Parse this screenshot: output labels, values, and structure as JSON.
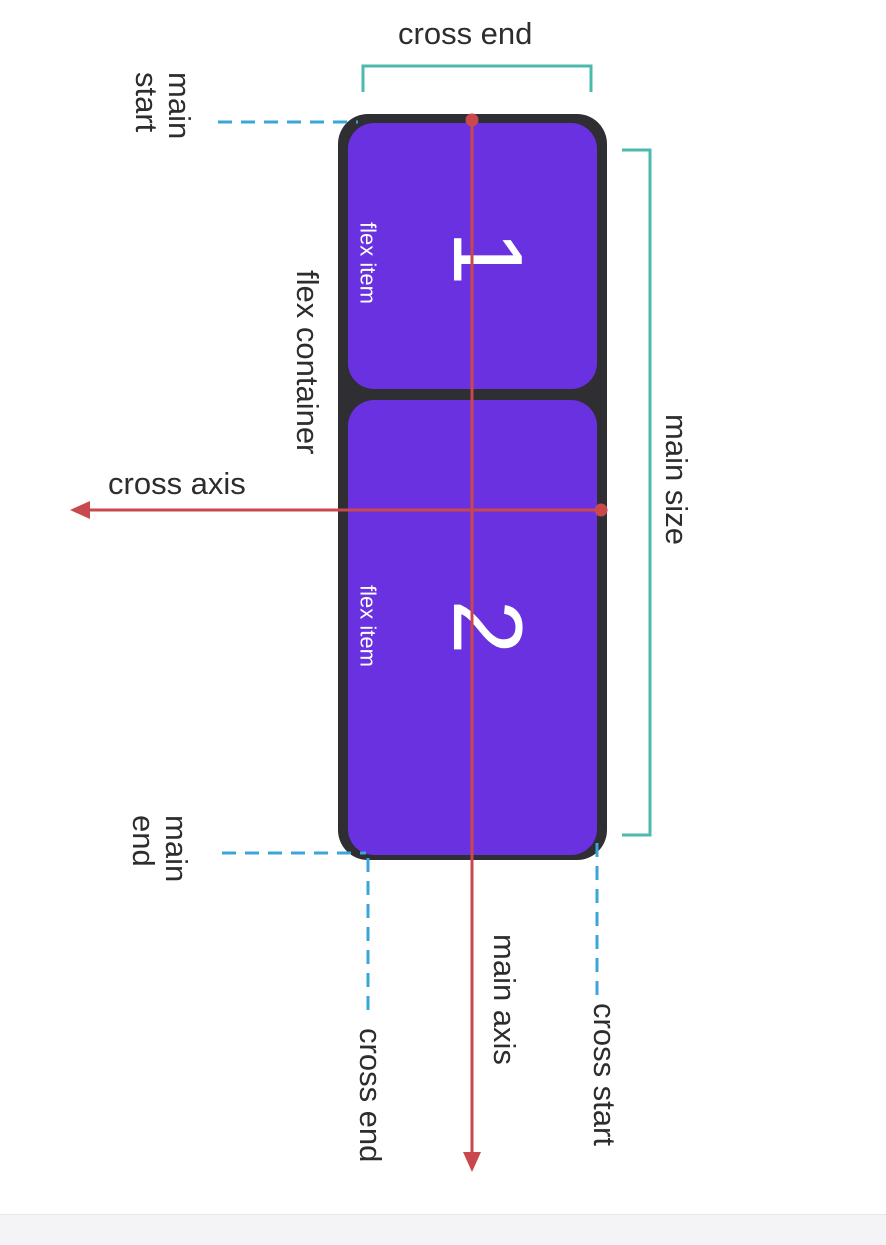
{
  "colors": {
    "container": "#2e2e33",
    "item": "#6a31e0",
    "axis": "#c9484d",
    "bracket": "#4db8ac",
    "dashed": "#3aa6d8",
    "text": "#2d2d2d",
    "item_text": "#ffffff"
  },
  "labels": {
    "cross_end_top": "cross end",
    "main_start": "main\nstart",
    "flex_container": "flex container",
    "cross_axis": "cross axis",
    "main_size": "main size",
    "main_end": "main\nend",
    "main_axis": "main axis",
    "cross_start": "cross start",
    "cross_end_bottom": "cross end"
  },
  "items": [
    {
      "number": "1",
      "label": "flex item"
    },
    {
      "number": "2",
      "label": "flex item"
    }
  ]
}
